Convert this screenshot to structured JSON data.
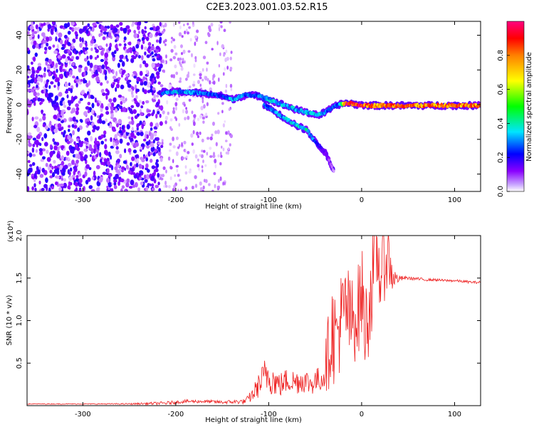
{
  "title": "C2E3.2023.001.03.52.R15",
  "chart_data": [
    {
      "type": "heatmap",
      "xlabel": "Height of straight line (km)",
      "ylabel": "Frequency (Hz)",
      "xlim": [
        -360,
        128
      ],
      "ylim": [
        -50,
        48
      ],
      "x_ticks": [
        -300,
        -200,
        -100,
        0,
        100
      ],
      "y_ticks": [
        -40,
        -20,
        0,
        20,
        40
      ],
      "x_tick_labels": [
        "-300",
        "-200",
        "-100",
        "0",
        "100"
      ],
      "y_tick_labels": [
        "-40",
        "-20",
        "0",
        "20",
        "40"
      ],
      "colorbar": {
        "label": "Normalized spectral amplitude",
        "range": [
          0.0,
          1.0
        ],
        "ticks": [
          0.0,
          0.2,
          0.4,
          0.6,
          0.8
        ],
        "tick_labels": [
          "0.0",
          "0.2",
          "0.4",
          "0.6",
          "0.8"
        ],
        "colormap": "rainbow",
        "colors": [
          "#ffffff",
          "#8a00ff",
          "#0000ff",
          "#00e5ff",
          "#00ff00",
          "#ffff00",
          "#ff8000",
          "#ff0000",
          "#ff0080"
        ]
      },
      "noise_region": {
        "x_range": [
          -360,
          -215
        ],
        "y_range": [
          -50,
          48
        ],
        "amplitude": 0.15
      },
      "sparse_noise_region": {
        "x_range": [
          -215,
          -140
        ],
        "y_range": [
          -50,
          48
        ],
        "amplitude": 0.05
      },
      "main_track": {
        "points": [
          [
            -215,
            7
          ],
          [
            -200,
            7.5
          ],
          [
            -180,
            7
          ],
          [
            -165,
            6
          ],
          [
            -150,
            5
          ],
          [
            -140,
            3
          ],
          [
            -125,
            5.5
          ],
          [
            -110,
            5
          ],
          [
            -100,
            3
          ],
          [
            -85,
            0
          ],
          [
            -70,
            -3
          ],
          [
            -55,
            -5
          ],
          [
            -45,
            -6
          ],
          [
            -35,
            -3
          ],
          [
            -25,
            0
          ],
          [
            -15,
            1
          ],
          [
            -5,
            0
          ],
          [
            10,
            -0.5
          ],
          [
            128,
            -0.5
          ]
        ],
        "amplitudes": [
          0.3,
          0.35,
          0.3,
          0.3,
          0.25,
          0.35,
          0.3,
          0.3,
          0.35,
          0.35,
          0.35,
          0.35,
          0.35,
          0.3,
          0.3,
          0.9,
          0.9,
          0.75,
          0.75
        ]
      },
      "branch_track": {
        "points": [
          [
            -105,
            0
          ],
          [
            -85,
            -7
          ],
          [
            -70,
            -12
          ],
          [
            -58,
            -15
          ],
          [
            -52,
            -20
          ],
          [
            -40,
            -27
          ],
          [
            -30,
            -38
          ]
        ],
        "amplitudes": [
          0.3,
          0.35,
          0.4,
          0.4,
          0.3,
          0.15,
          0.05
        ]
      }
    },
    {
      "type": "line",
      "xlabel": "Height of straight line (km)",
      "ylabel": "SNR (10 * v/v)",
      "y_multiplier": "(x10⁴)",
      "xlim": [
        -360,
        128
      ],
      "ylim": [
        0,
        2.0
      ],
      "x_ticks": [
        -300,
        -200,
        -100,
        0,
        100
      ],
      "y_ticks": [
        0.5,
        1.0,
        1.5,
        2.0
      ],
      "x_tick_labels": [
        "-300",
        "-200",
        "-100",
        "0",
        "100"
      ],
      "y_tick_labels": [
        "0.5",
        "1.0",
        "1.5",
        "2.0"
      ],
      "color": "#ee2020",
      "series": [
        {
          "x": [
            -360,
            -300,
            -250,
            -210,
            -190,
            -170,
            -150,
            -125,
            -118,
            -110,
            -102,
            -95,
            -88,
            -80,
            -72,
            -62,
            -55,
            -48,
            -42,
            -36,
            -32,
            -28,
            -24,
            -20,
            -16,
            -12,
            -8,
            -4,
            0,
            4,
            8,
            12,
            16,
            20,
            24,
            28,
            32,
            36,
            40,
            45,
            50,
            60,
            70,
            80,
            90,
            100,
            110,
            120,
            128
          ],
          "y": [
            0.02,
            0.02,
            0.02,
            0.03,
            0.05,
            0.05,
            0.04,
            0.05,
            0.12,
            0.25,
            0.38,
            0.3,
            0.24,
            0.3,
            0.28,
            0.3,
            0.26,
            0.3,
            0.32,
            0.62,
            0.9,
            0.78,
            0.95,
            1.05,
            1.15,
            0.95,
            1.05,
            1.1,
            1.35,
            0.9,
            1.2,
            1.5,
            1.78,
            1.55,
            1.65,
            1.8,
            1.55,
            1.5,
            1.49,
            1.5,
            1.5,
            1.49,
            1.48,
            1.48,
            1.47,
            1.47,
            1.46,
            1.45,
            1.45
          ],
          "noise_amplitude": [
            0.005,
            0.005,
            0.008,
            0.02,
            0.02,
            0.02,
            0.02,
            0.03,
            0.08,
            0.15,
            0.25,
            0.18,
            0.15,
            0.15,
            0.15,
            0.15,
            0.14,
            0.15,
            0.15,
            0.45,
            0.6,
            0.6,
            0.6,
            0.6,
            0.6,
            0.55,
            0.55,
            0.55,
            0.6,
            0.5,
            0.6,
            0.55,
            0.45,
            0.5,
            0.45,
            0.4,
            0.25,
            0.1,
            0.04,
            0.025,
            0.02,
            0.02,
            0.015,
            0.015,
            0.015,
            0.015,
            0.015,
            0.015,
            0.015
          ]
        }
      ]
    }
  ]
}
